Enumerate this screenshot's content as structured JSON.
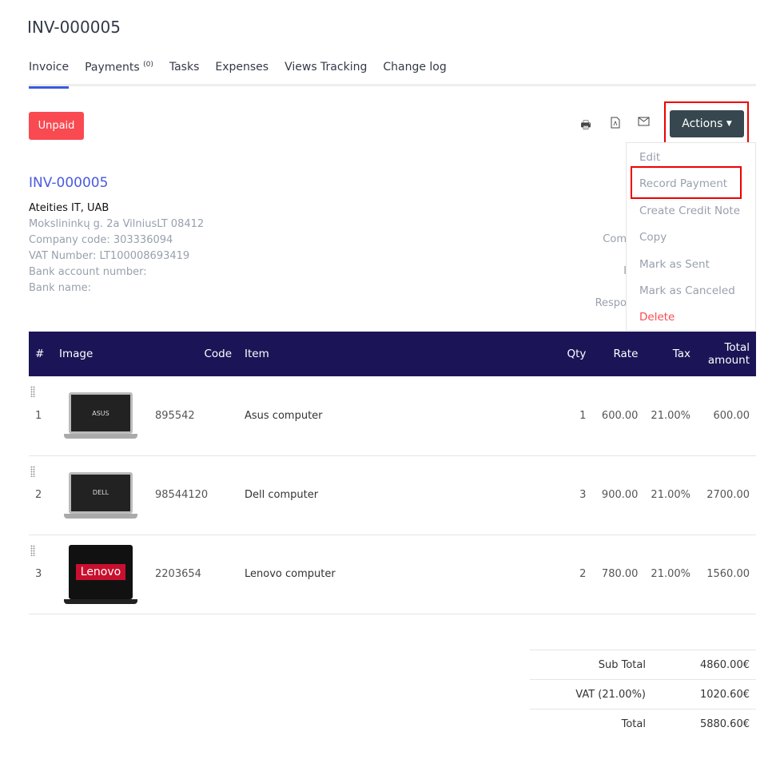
{
  "header": {
    "title": "INV-000005"
  },
  "tabs": [
    {
      "label": "Invoice"
    },
    {
      "label": "Payments",
      "count": "(0)"
    },
    {
      "label": "Tasks"
    },
    {
      "label": "Expenses"
    },
    {
      "label": "Views Tracking"
    },
    {
      "label": "Change log"
    }
  ],
  "status": "Unpaid",
  "toolbar": {
    "print_icon": "print-icon",
    "pdf_icon": "file-pdf-icon",
    "email_icon": "envelope-icon",
    "actions_label": "Actions"
  },
  "actions_menu": [
    "Edit",
    "Record Payment",
    "Create Credit Note",
    "Copy",
    "Mark as Sent",
    "Mark as Canceled",
    "Delete"
  ],
  "invoice_number": "INV-000005",
  "company": {
    "name": "Ateities IT, UAB",
    "address": "Mokslininkų g. 2a VilniusLT 08412",
    "code": "Company code: 303336094",
    "vat": "VAT Number: LT100008693419",
    "bank_account": "Bank account number:",
    "bank_name": "Bank name:"
  },
  "right_labels": [
    "Com",
    "I",
    "Respo"
  ],
  "table": {
    "headers": [
      "#",
      "Image",
      "Code",
      "Item",
      "Qty",
      "Rate",
      "Tax",
      "Total amount"
    ],
    "rows": [
      {
        "num": "1",
        "brand": "ASUS",
        "code": "895542",
        "item": "Asus computer",
        "qty": "1",
        "rate": "600.00",
        "tax": "21.00%",
        "total": "600.00"
      },
      {
        "num": "2",
        "brand": "DELL",
        "code": "98544120",
        "item": "Dell computer",
        "qty": "3",
        "rate": "900.00",
        "tax": "21.00%",
        "total": "2700.00"
      },
      {
        "num": "3",
        "brand": "Lenovo",
        "code": "2203654",
        "item": "Lenovo computer",
        "qty": "2",
        "rate": "780.00",
        "tax": "21.00%",
        "total": "1560.00"
      }
    ]
  },
  "totals": [
    {
      "label": "Sub Total",
      "value": "4860.00€"
    },
    {
      "label": "VAT (21.00%)",
      "value": "1020.60€"
    },
    {
      "label": "Total",
      "value": "5880.60€"
    }
  ]
}
